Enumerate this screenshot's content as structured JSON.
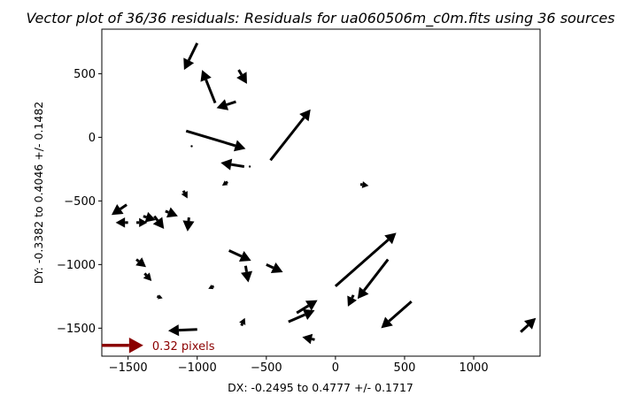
{
  "chart_data": {
    "type": "quiver",
    "title": "Vector plot of 36/36 residuals:  Residuals for ua060506m_c0m.fits using 36 sources",
    "xlabel": "DX: -0.2495 to 0.4777 +/- 0.1717",
    "ylabel": "DY: -0.3382 to 0.4046 +/- 0.1482",
    "xlim": [
      -1690,
      1480
    ],
    "ylim": [
      -1720,
      850
    ],
    "xticks": [
      -1500,
      -1000,
      -500,
      0,
      500,
      1000
    ],
    "yticks": [
      -1500,
      -1000,
      -500,
      0,
      500
    ],
    "xtick_labels": [
      "−1500",
      "−1000",
      "−500",
      "0",
      "500",
      "1000"
    ],
    "ytick_labels": [
      "−1500",
      "−1000",
      "−500",
      "0",
      "500"
    ],
    "grid": false,
    "vector_color": "#000000",
    "reference": {
      "label": "0.32 pixels",
      "color": "#8b0000",
      "x": -1690,
      "y": -1635,
      "u": 300,
      "v": 0
    },
    "vectors": [
      {
        "x": -1000,
        "y": 740,
        "u": -95,
        "v": -210
      },
      {
        "x": -870,
        "y": 270,
        "u": -95,
        "v": 260
      },
      {
        "x": -720,
        "y": 280,
        "u": -140,
        "v": -50
      },
      {
        "x": -700,
        "y": 530,
        "u": 60,
        "v": -110
      },
      {
        "x": -1080,
        "y": 50,
        "u": 430,
        "v": -140
      },
      {
        "x": -1040,
        "y": -70,
        "u": 0,
        "v": 0
      },
      {
        "x": -660,
        "y": -230,
        "u": -170,
        "v": 30
      },
      {
        "x": -620,
        "y": -230,
        "u": 0,
        "v": -5
      },
      {
        "x": -470,
        "y": -180,
        "u": 290,
        "v": 400
      },
      {
        "x": -780,
        "y": -350,
        "u": -40,
        "v": -30
      },
      {
        "x": 180,
        "y": -370,
        "u": 60,
        "v": -10
      },
      {
        "x": -1510,
        "y": -530,
        "u": -110,
        "v": -80
      },
      {
        "x": -1100,
        "y": -420,
        "u": 30,
        "v": -60
      },
      {
        "x": -1230,
        "y": -580,
        "u": 90,
        "v": -40
      },
      {
        "x": -1060,
        "y": -630,
        "u": -10,
        "v": -110
      },
      {
        "x": -1500,
        "y": -670,
        "u": -90,
        "v": 0
      },
      {
        "x": -1440,
        "y": -670,
        "u": 80,
        "v": 0
      },
      {
        "x": -1390,
        "y": -620,
        "u": 90,
        "v": -30
      },
      {
        "x": -1310,
        "y": -620,
        "u": 70,
        "v": -100
      },
      {
        "x": -1440,
        "y": -960,
        "u": 70,
        "v": -60
      },
      {
        "x": -1380,
        "y": -1070,
        "u": 50,
        "v": -60
      },
      {
        "x": -1290,
        "y": -1250,
        "u": 40,
        "v": -15
      },
      {
        "x": -770,
        "y": -890,
        "u": 160,
        "v": -80
      },
      {
        "x": -650,
        "y": -1010,
        "u": 20,
        "v": -130
      },
      {
        "x": -500,
        "y": -1000,
        "u": 120,
        "v": -60
      },
      {
        "x": -880,
        "y": -1170,
        "u": -40,
        "v": -20
      },
      {
        "x": -680,
        "y": -1480,
        "u": 25,
        "v": 60
      },
      {
        "x": -1000,
        "y": -1510,
        "u": -210,
        "v": -10
      },
      {
        "x": -340,
        "y": -1450,
        "u": 190,
        "v": 90
      },
      {
        "x": -280,
        "y": -1380,
        "u": 150,
        "v": 100
      },
      {
        "x": -150,
        "y": -1590,
        "u": -90,
        "v": 20
      },
      {
        "x": 0,
        "y": -1170,
        "u": 440,
        "v": 420
      },
      {
        "x": 380,
        "y": -960,
        "u": -220,
        "v": -310
      },
      {
        "x": 130,
        "y": -1240,
        "u": -40,
        "v": -90
      },
      {
        "x": 550,
        "y": -1290,
        "u": -220,
        "v": -210
      },
      {
        "x": 1340,
        "y": -1530,
        "u": 110,
        "v": 110
      }
    ]
  }
}
